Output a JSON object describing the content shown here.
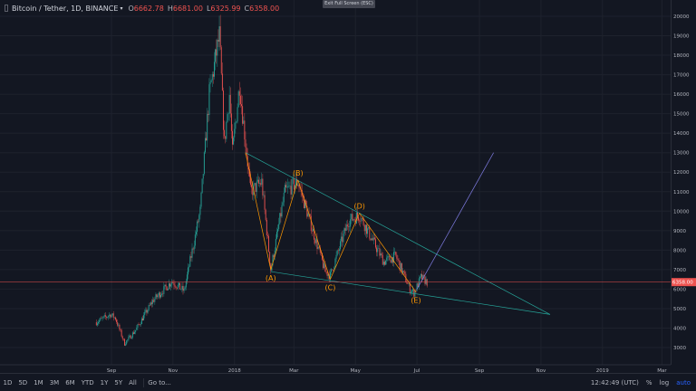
{
  "header": {
    "title": "Bitcoin / Tether, 1D, BINANCE",
    "caret": "▾",
    "ohlc": [
      {
        "k": "O",
        "v": "6662.78"
      },
      {
        "k": "H",
        "v": "6681.00"
      },
      {
        "k": "L",
        "v": "6325.99"
      },
      {
        "k": "C",
        "v": "6358.00"
      }
    ]
  },
  "tooltip": "Exit Full Screen (ESC)",
  "colors": {
    "up": "#26a69a",
    "down": "#ef5350",
    "wave": "#ff9800",
    "pattern": "#26a69a",
    "projection": "#7e7be0",
    "price_line": "#ef5350",
    "badge": "#ef5350"
  },
  "chart_data": {
    "type": "candlestick",
    "y_ticks": [
      3000,
      4000,
      5000,
      6000,
      7000,
      8000,
      9000,
      10000,
      11000,
      12000,
      13000,
      14000,
      15000,
      16000,
      17000,
      18000,
      19000,
      20000
    ],
    "x_labels": [
      "Sep",
      "Nov",
      "2018",
      "Mar",
      "May",
      "Jul",
      "Sep",
      "Nov",
      "2019",
      "Mar"
    ],
    "last_price": "6358.00",
    "price_path": [
      [
        "2017-08-17",
        4300
      ],
      [
        "2017-08-31",
        4700
      ],
      [
        "2017-09-05",
        4500
      ],
      [
        "2017-09-14",
        3200
      ],
      [
        "2017-09-25",
        3900
      ],
      [
        "2017-10-12",
        5400
      ],
      [
        "2017-10-31",
        6400
      ],
      [
        "2017-11-12",
        5900
      ],
      [
        "2017-11-28",
        10000
      ],
      [
        "2017-12-07",
        16000
      ],
      [
        "2017-12-17",
        19000
      ],
      [
        "2017-12-22",
        13500
      ],
      [
        "2017-12-27",
        16000
      ],
      [
        "2017-12-30",
        13000
      ],
      [
        "2018-01-06",
        16500
      ],
      [
        "2018-01-17",
        11000
      ],
      [
        "2018-01-28",
        11500
      ],
      [
        "2018-02-06",
        7000
      ],
      [
        "2018-02-20",
        11000
      ],
      [
        "2018-03-05",
        11500
      ],
      [
        "2018-04-01",
        6900
      ],
      [
        "2018-04-06",
        6700
      ],
      [
        "2018-04-24",
        9500
      ],
      [
        "2018-05-05",
        9800
      ],
      [
        "2018-05-29",
        7400
      ],
      [
        "2018-06-10",
        7700
      ],
      [
        "2018-06-24",
        6000
      ],
      [
        "2018-06-28",
        5800
      ],
      [
        "2018-07-05",
        6600
      ],
      [
        "2018-07-11",
        6358
      ]
    ],
    "wave_points": [
      {
        "label": "(A)",
        "date": "2018-02-06",
        "price": 7000
      },
      {
        "label": "(B)",
        "date": "2018-03-05",
        "price": 11600
      },
      {
        "label": "(C)",
        "date": "2018-04-06",
        "price": 6500
      },
      {
        "label": "(D)",
        "date": "2018-05-05",
        "price": 9900
      },
      {
        "label": "(E)",
        "date": "2018-06-30",
        "price": 5850
      }
    ],
    "triangle": {
      "upper": [
        [
          "2018-01-12",
          13000
        ],
        [
          "2018-11-10",
          4700
        ]
      ],
      "lower": [
        [
          "2018-02-06",
          6900
        ],
        [
          "2018-11-10",
          4700
        ]
      ]
    },
    "projection": [
      [
        "2018-07-01",
        6000
      ],
      [
        "2018-09-15",
        13000
      ]
    ]
  },
  "timebar": {
    "ranges": [
      "1D",
      "5D",
      "1M",
      "3M",
      "6M",
      "YTD",
      "1Y",
      "5Y",
      "All"
    ],
    "goto": "Go to...",
    "time": "12:42:49 (UTC)",
    "percent": "%",
    "log": "log",
    "auto": "auto"
  }
}
